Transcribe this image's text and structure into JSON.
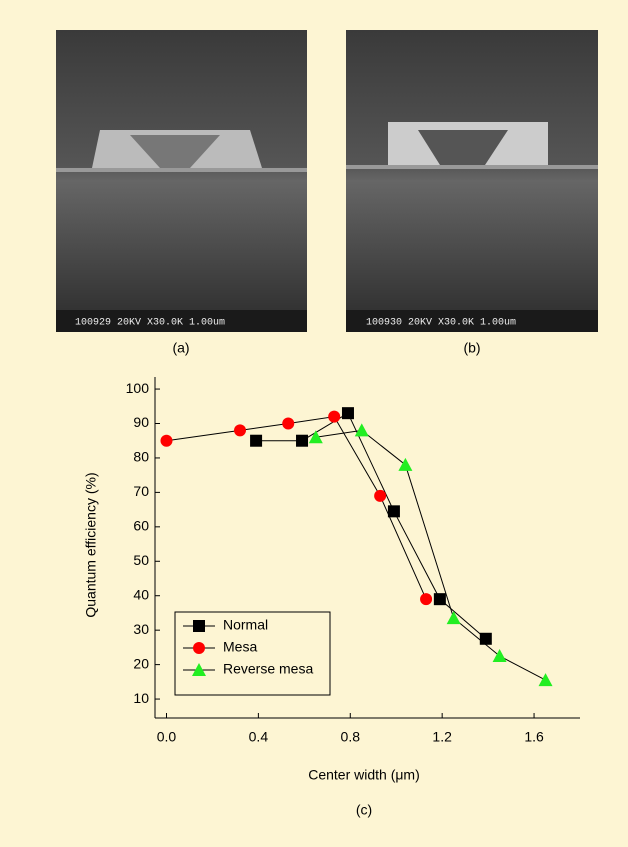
{
  "panels": [
    {
      "label": "(a)",
      "info": "100929 20KV X30.0K 1.00um"
    },
    {
      "label": "(b)",
      "info": "100930 20KV X30.0K 1.00um"
    }
  ],
  "chart_data": {
    "type": "line",
    "caption": "(c)",
    "x_label": "Center width (μm)",
    "y_label": "Quantum efficiency (%)",
    "xlim": [
      -0.05,
      1.8
    ],
    "ylim": [
      4.5,
      103.5
    ],
    "xticks": [
      {
        "value": 0,
        "label": "0.0"
      },
      0.4,
      0.8,
      1.2,
      1.6
    ],
    "yticks": [
      10,
      20,
      30,
      40,
      50,
      60,
      70,
      80,
      90,
      100
    ],
    "line_color": "#000000",
    "legend": "lower left",
    "series": [
      {
        "name": "Normal",
        "color": "#000000",
        "marker": "square",
        "x": [
          0.39,
          0.59,
          0.79,
          0.99,
          1.19,
          1.39
        ],
        "values": [
          85,
          85,
          93,
          64.5,
          39,
          27.5
        ]
      },
      {
        "name": "Mesa",
        "color": "#ff0000",
        "marker": "circle",
        "x": [
          0.0,
          0.32,
          0.53,
          0.73,
          0.93,
          1.13
        ],
        "values": [
          85,
          88,
          90,
          92,
          69,
          39
        ]
      },
      {
        "name": "Reverse mesa",
        "color": "#22ee22",
        "marker": "triangle",
        "x": [
          0.65,
          0.85,
          1.04,
          1.25,
          1.45,
          1.65
        ],
        "values": [
          86,
          88,
          78,
          33.5,
          22.5,
          15.5
        ]
      }
    ]
  }
}
